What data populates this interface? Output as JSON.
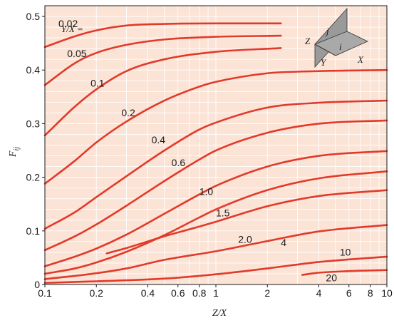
{
  "chart_data": {
    "type": "line",
    "title": "",
    "xlabel": "Z/X",
    "ylabel_main": "F",
    "ylabel_sub": "ij",
    "x_scale": "log",
    "xlim": [
      0.1,
      10
    ],
    "ylim": [
      0,
      0.52
    ],
    "grid": true,
    "colors": {
      "background": "#fbe3d6",
      "grid": "#ffffff",
      "curve": "#e23a2a",
      "text": "#1a1a1a",
      "inset_plate": "#9a9a9a"
    },
    "x_ticks": [
      {
        "v": 0.1,
        "label": "0.1"
      },
      {
        "v": 0.2,
        "label": "0.2"
      },
      {
        "v": 0.4,
        "label": "0.4"
      },
      {
        "v": 0.6,
        "label": "0.6"
      },
      {
        "v": 0.8,
        "label": "0.8"
      },
      {
        "v": 1,
        "label": "1"
      },
      {
        "v": 2,
        "label": "2"
      },
      {
        "v": 4,
        "label": "4"
      },
      {
        "v": 6,
        "label": "6"
      },
      {
        "v": 8,
        "label": "8"
      },
      {
        "v": 10,
        "label": "10"
      }
    ],
    "y_ticks": [
      {
        "v": 0,
        "label": "0"
      },
      {
        "v": 0.1,
        "label": "0.1"
      },
      {
        "v": 0.2,
        "label": "0.2"
      },
      {
        "v": 0.3,
        "label": "0.3"
      },
      {
        "v": 0.4,
        "label": "0.4"
      },
      {
        "v": 0.5,
        "label": "0.5"
      }
    ],
    "legend_title": "Y/X =",
    "series": [
      {
        "label": "0.02",
        "label_at": [
          0.12,
          0.48
        ],
        "points": [
          [
            0.1,
            0.443
          ],
          [
            0.15,
            0.463
          ],
          [
            0.2,
            0.474
          ],
          [
            0.3,
            0.483
          ],
          [
            0.5,
            0.486
          ],
          [
            1,
            0.487
          ],
          [
            2.4,
            0.487
          ]
        ]
      },
      {
        "label": "0.05",
        "label_at": [
          0.135,
          0.424
        ],
        "points": [
          [
            0.1,
            0.372
          ],
          [
            0.15,
            0.413
          ],
          [
            0.2,
            0.432
          ],
          [
            0.3,
            0.447
          ],
          [
            0.5,
            0.457
          ],
          [
            1,
            0.462
          ],
          [
            2.4,
            0.464
          ]
        ]
      },
      {
        "label": "0.1",
        "label_at": [
          0.185,
          0.369
        ],
        "points": [
          [
            0.1,
            0.278
          ],
          [
            0.15,
            0.332
          ],
          [
            0.2,
            0.364
          ],
          [
            0.3,
            0.398
          ],
          [
            0.5,
            0.42
          ],
          [
            1,
            0.434
          ],
          [
            2.4,
            0.441
          ]
        ]
      },
      {
        "label": "0.2",
        "label_at": [
          0.28,
          0.314
        ],
        "points": [
          [
            0.1,
            0.188
          ],
          [
            0.15,
            0.231
          ],
          [
            0.2,
            0.265
          ],
          [
            0.3,
            0.304
          ],
          [
            0.5,
            0.343
          ],
          [
            0.8,
            0.369
          ],
          [
            1,
            0.378
          ],
          [
            2,
            0.394
          ],
          [
            3,
            0.397
          ],
          [
            10,
            0.4
          ]
        ]
      },
      {
        "label": "0.4",
        "label_at": [
          0.42,
          0.263
        ],
        "points": [
          [
            0.1,
            0.104
          ],
          [
            0.15,
            0.135
          ],
          [
            0.2,
            0.163
          ],
          [
            0.3,
            0.202
          ],
          [
            0.5,
            0.25
          ],
          [
            0.8,
            0.289
          ],
          [
            1,
            0.302
          ],
          [
            2,
            0.33
          ],
          [
            4,
            0.339
          ],
          [
            10,
            0.343
          ]
        ]
      },
      {
        "label": "0.6",
        "label_at": [
          0.55,
          0.221
        ],
        "points": [
          [
            0.1,
            0.064
          ],
          [
            0.15,
            0.09
          ],
          [
            0.2,
            0.112
          ],
          [
            0.3,
            0.147
          ],
          [
            0.5,
            0.193
          ],
          [
            0.8,
            0.233
          ],
          [
            1,
            0.25
          ],
          [
            2,
            0.283
          ],
          [
            4,
            0.3
          ],
          [
            10,
            0.306
          ]
        ]
      },
      {
        "label": "1.0",
        "label_at": [
          0.8,
          0.167
        ],
        "points": [
          [
            0.1,
            0.034
          ],
          [
            0.15,
            0.052
          ],
          [
            0.2,
            0.067
          ],
          [
            0.3,
            0.093
          ],
          [
            0.5,
            0.132
          ],
          [
            0.8,
            0.168
          ],
          [
            1,
            0.184
          ],
          [
            2,
            0.22
          ],
          [
            4,
            0.24
          ],
          [
            10,
            0.249
          ]
        ]
      },
      {
        "label": "1.5",
        "label_at": [
          1.0,
          0.127
        ],
        "points": [
          [
            0.1,
            0.02
          ],
          [
            0.15,
            0.03
          ],
          [
            0.2,
            0.041
          ],
          [
            0.3,
            0.061
          ],
          [
            0.5,
            0.092
          ],
          [
            0.8,
            0.125
          ],
          [
            1,
            0.14
          ],
          [
            2,
            0.176
          ],
          [
            4,
            0.198
          ],
          [
            10,
            0.211
          ]
        ]
      },
      {
        "label": "2.0",
        "label_at": [
          1.35,
          0.078
        ],
        "points": [
          [
            0.23,
            0.058
          ],
          [
            0.3,
            0.068
          ],
          [
            0.5,
            0.09
          ],
          [
            0.8,
            0.108
          ],
          [
            1,
            0.117
          ],
          [
            2,
            0.146
          ],
          [
            4,
            0.165
          ],
          [
            10,
            0.176
          ]
        ]
      },
      {
        "label": "4",
        "label_at": [
          2.4,
          0.072
        ],
        "points": [
          [
            0.1,
            0.01
          ],
          [
            0.2,
            0.021
          ],
          [
            0.3,
            0.03
          ],
          [
            0.5,
            0.046
          ],
          [
            1,
            0.062
          ],
          [
            2,
            0.081
          ],
          [
            4,
            0.099
          ],
          [
            10,
            0.111
          ]
        ]
      },
      {
        "label": "10",
        "label_at": [
          5.3,
          0.054
        ],
        "points": [
          [
            0.1,
            0.003
          ],
          [
            0.2,
            0.006
          ],
          [
            0.5,
            0.011
          ],
          [
            1,
            0.019
          ],
          [
            2,
            0.03
          ],
          [
            4,
            0.042
          ],
          [
            10,
            0.052
          ]
        ]
      },
      {
        "label": "20",
        "label_at": [
          4.4,
          0.006
        ],
        "points": [
          [
            3.2,
            0.018
          ],
          [
            4,
            0.022
          ],
          [
            6,
            0.025
          ],
          [
            10,
            0.027
          ]
        ]
      }
    ],
    "inset": {
      "labels": [
        "j",
        "i",
        "Z",
        "Y",
        "X"
      ]
    }
  }
}
